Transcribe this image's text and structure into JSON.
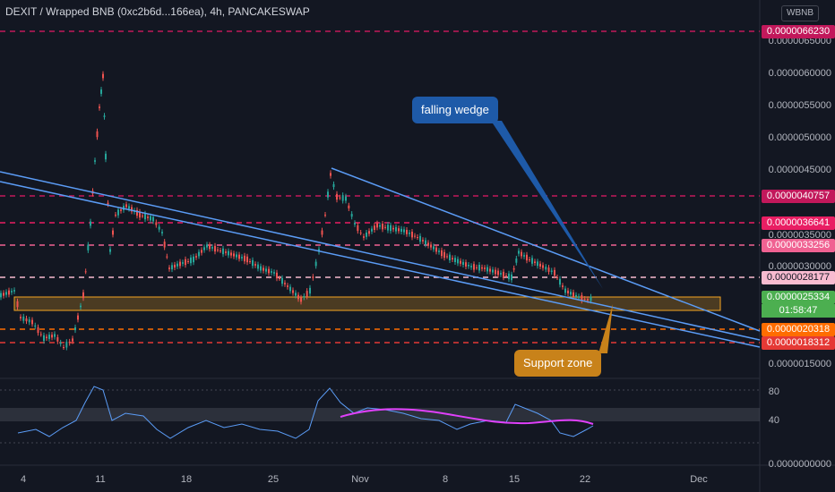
{
  "header": {
    "title": "DEXIT / Wrapped BNB (0xc2b6d...166ea), 4h, PANCAKESWAP",
    "currency_badge": "WBNB"
  },
  "price_axis": {
    "labels": [
      "0.0000065000",
      "0.0000060000",
      "0.0000055000",
      "0.0000050000",
      "0.0000045000",
      "0.0000035000",
      "0.0000030000",
      "0.0000015000"
    ],
    "tags": [
      {
        "text": "0.0000066230",
        "color": "#c2185b"
      },
      {
        "text": "0.0000040757",
        "color": "#c2185b"
      },
      {
        "text": "0.0000036641",
        "color": "#e91e63"
      },
      {
        "text": "0.0000033256",
        "color": "#f06292"
      },
      {
        "text": "0.0000028177",
        "color": "#f8bbd0"
      },
      {
        "text": "0.0000025334",
        "color": "#4caf50"
      },
      {
        "text": "0.0000020318",
        "color": "#ff6d00"
      },
      {
        "text": "0.0000018312",
        "color": "#e53935"
      }
    ],
    "countdown": "01:58:47"
  },
  "rsi_axis": {
    "labels": [
      "80",
      "40",
      "0.0000000000"
    ]
  },
  "time_axis": {
    "labels": [
      "4",
      "11",
      "18",
      "25",
      "Nov",
      "8",
      "15",
      "22",
      "Dec"
    ]
  },
  "annotations": {
    "falling_wedge": "falling wedge",
    "support_zone": "Support zone"
  },
  "colors": {
    "background": "#131722",
    "up": "#26a69a",
    "down": "#ef5350",
    "line": "#5b9cf6",
    "rsi": "#5b9cf6",
    "rsi_ma": "#e040fb",
    "support_box": "#f5a623"
  }
}
